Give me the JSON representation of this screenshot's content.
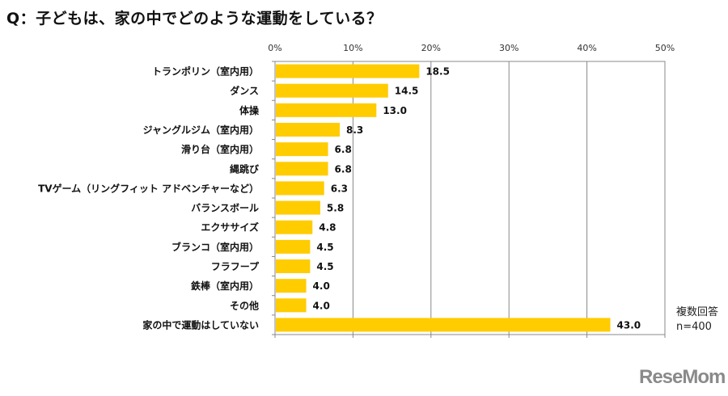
{
  "title": "Q：子どもは、家の中でどのような運動をしている？",
  "note": {
    "line1": "複数回答",
    "line2": "n=400"
  },
  "logo": "ReseMom",
  "chart_data": {
    "type": "bar",
    "orientation": "horizontal",
    "categories": [
      "トランポリン（室内用）",
      "ダンス",
      "体操",
      "ジャングルジム（室内用）",
      "滑り台（室内用）",
      "縄跳び",
      "TVゲーム（リングフィット アドベンチャーなど）",
      "バランスボール",
      "エクササイズ",
      "ブランコ（室内用）",
      "フラフープ",
      "鉄棒（室内用）",
      "その他",
      "家の中で運動はしていない"
    ],
    "values": [
      18.5,
      14.5,
      13.0,
      8.3,
      6.8,
      6.8,
      6.3,
      5.8,
      4.8,
      4.5,
      4.5,
      4.0,
      4.0,
      43.0
    ],
    "xlim": [
      0,
      50
    ],
    "xticks": [
      "0%",
      "10%",
      "20%",
      "30%",
      "40%",
      "50%"
    ],
    "grid": true,
    "bar_color": "#FFCC00"
  }
}
